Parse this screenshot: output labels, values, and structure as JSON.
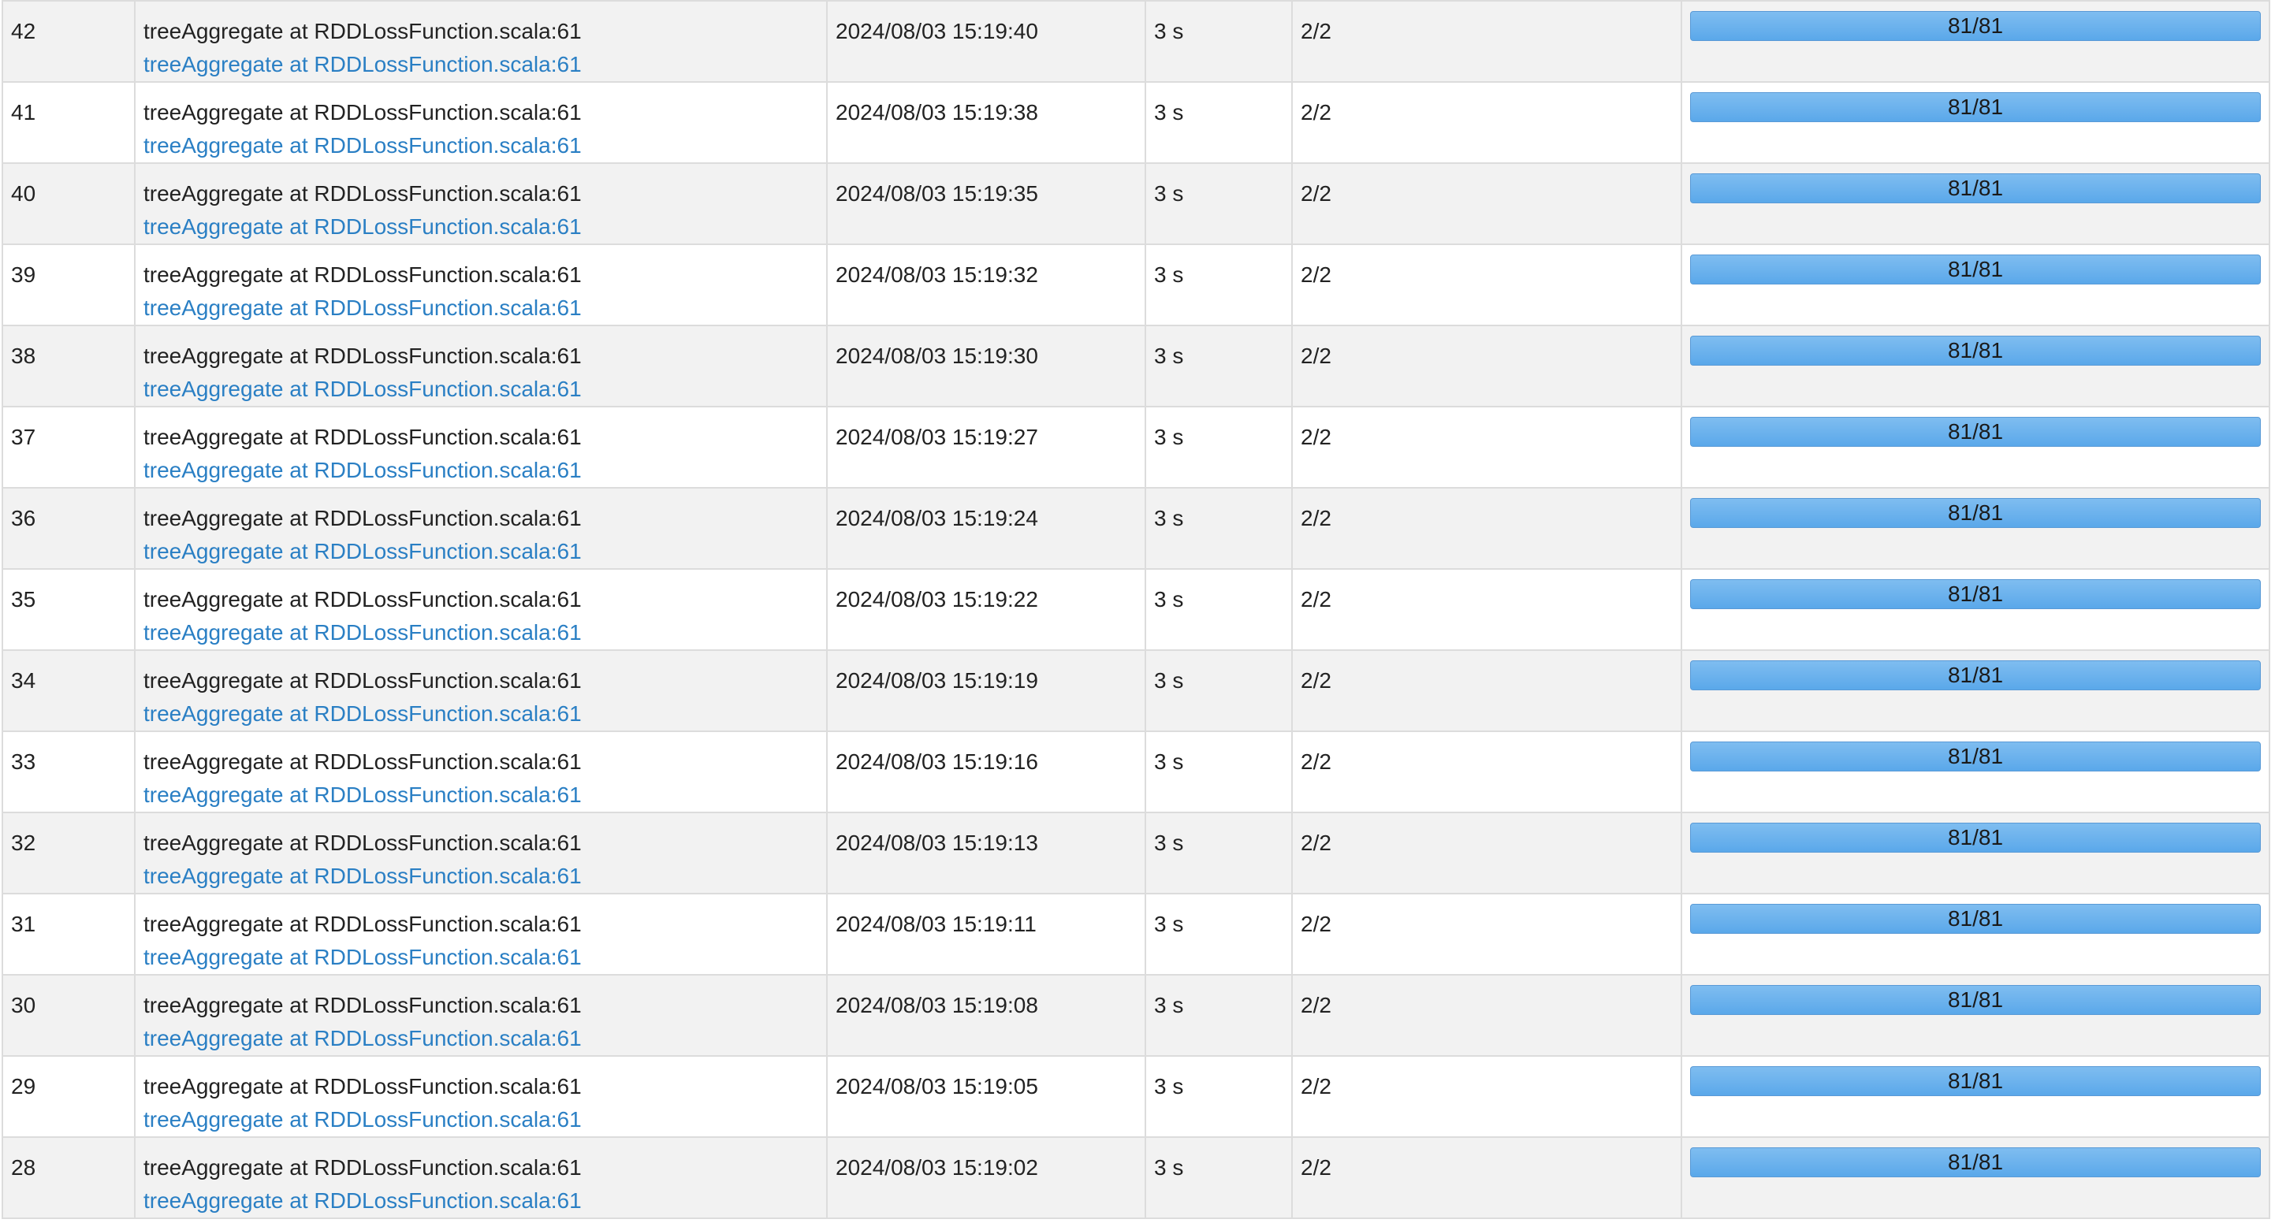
{
  "colors": {
    "link": "#2a7fc4",
    "progress_fill": "#5aa8ea",
    "row_alt": "#f2f2f2",
    "border": "#dcdcdc"
  },
  "jobs": [
    {
      "id": "42",
      "description": "treeAggregate at RDDLossFunction.scala:61",
      "link": "treeAggregate at RDDLossFunction.scala:61",
      "submitted": "2024/08/03 15:19:40",
      "duration": "3 s",
      "stages": "2/2",
      "tasks": "81/81",
      "progress": 1.0
    },
    {
      "id": "41",
      "description": "treeAggregate at RDDLossFunction.scala:61",
      "link": "treeAggregate at RDDLossFunction.scala:61",
      "submitted": "2024/08/03 15:19:38",
      "duration": "3 s",
      "stages": "2/2",
      "tasks": "81/81",
      "progress": 1.0
    },
    {
      "id": "40",
      "description": "treeAggregate at RDDLossFunction.scala:61",
      "link": "treeAggregate at RDDLossFunction.scala:61",
      "submitted": "2024/08/03 15:19:35",
      "duration": "3 s",
      "stages": "2/2",
      "tasks": "81/81",
      "progress": 1.0
    },
    {
      "id": "39",
      "description": "treeAggregate at RDDLossFunction.scala:61",
      "link": "treeAggregate at RDDLossFunction.scala:61",
      "submitted": "2024/08/03 15:19:32",
      "duration": "3 s",
      "stages": "2/2",
      "tasks": "81/81",
      "progress": 1.0
    },
    {
      "id": "38",
      "description": "treeAggregate at RDDLossFunction.scala:61",
      "link": "treeAggregate at RDDLossFunction.scala:61",
      "submitted": "2024/08/03 15:19:30",
      "duration": "3 s",
      "stages": "2/2",
      "tasks": "81/81",
      "progress": 1.0
    },
    {
      "id": "37",
      "description": "treeAggregate at RDDLossFunction.scala:61",
      "link": "treeAggregate at RDDLossFunction.scala:61",
      "submitted": "2024/08/03 15:19:27",
      "duration": "3 s",
      "stages": "2/2",
      "tasks": "81/81",
      "progress": 1.0
    },
    {
      "id": "36",
      "description": "treeAggregate at RDDLossFunction.scala:61",
      "link": "treeAggregate at RDDLossFunction.scala:61",
      "submitted": "2024/08/03 15:19:24",
      "duration": "3 s",
      "stages": "2/2",
      "tasks": "81/81",
      "progress": 1.0
    },
    {
      "id": "35",
      "description": "treeAggregate at RDDLossFunction.scala:61",
      "link": "treeAggregate at RDDLossFunction.scala:61",
      "submitted": "2024/08/03 15:19:22",
      "duration": "3 s",
      "stages": "2/2",
      "tasks": "81/81",
      "progress": 1.0
    },
    {
      "id": "34",
      "description": "treeAggregate at RDDLossFunction.scala:61",
      "link": "treeAggregate at RDDLossFunction.scala:61",
      "submitted": "2024/08/03 15:19:19",
      "duration": "3 s",
      "stages": "2/2",
      "tasks": "81/81",
      "progress": 1.0
    },
    {
      "id": "33",
      "description": "treeAggregate at RDDLossFunction.scala:61",
      "link": "treeAggregate at RDDLossFunction.scala:61",
      "submitted": "2024/08/03 15:19:16",
      "duration": "3 s",
      "stages": "2/2",
      "tasks": "81/81",
      "progress": 1.0
    },
    {
      "id": "32",
      "description": "treeAggregate at RDDLossFunction.scala:61",
      "link": "treeAggregate at RDDLossFunction.scala:61",
      "submitted": "2024/08/03 15:19:13",
      "duration": "3 s",
      "stages": "2/2",
      "tasks": "81/81",
      "progress": 1.0
    },
    {
      "id": "31",
      "description": "treeAggregate at RDDLossFunction.scala:61",
      "link": "treeAggregate at RDDLossFunction.scala:61",
      "submitted": "2024/08/03 15:19:11",
      "duration": "3 s",
      "stages": "2/2",
      "tasks": "81/81",
      "progress": 1.0
    },
    {
      "id": "30",
      "description": "treeAggregate at RDDLossFunction.scala:61",
      "link": "treeAggregate at RDDLossFunction.scala:61",
      "submitted": "2024/08/03 15:19:08",
      "duration": "3 s",
      "stages": "2/2",
      "tasks": "81/81",
      "progress": 1.0
    },
    {
      "id": "29",
      "description": "treeAggregate at RDDLossFunction.scala:61",
      "link": "treeAggregate at RDDLossFunction.scala:61",
      "submitted": "2024/08/03 15:19:05",
      "duration": "3 s",
      "stages": "2/2",
      "tasks": "81/81",
      "progress": 1.0
    },
    {
      "id": "28",
      "description": "treeAggregate at RDDLossFunction.scala:61",
      "link": "treeAggregate at RDDLossFunction.scala:61",
      "submitted": "2024/08/03 15:19:02",
      "duration": "3 s",
      "stages": "2/2",
      "tasks": "81/81",
      "progress": 1.0
    }
  ]
}
